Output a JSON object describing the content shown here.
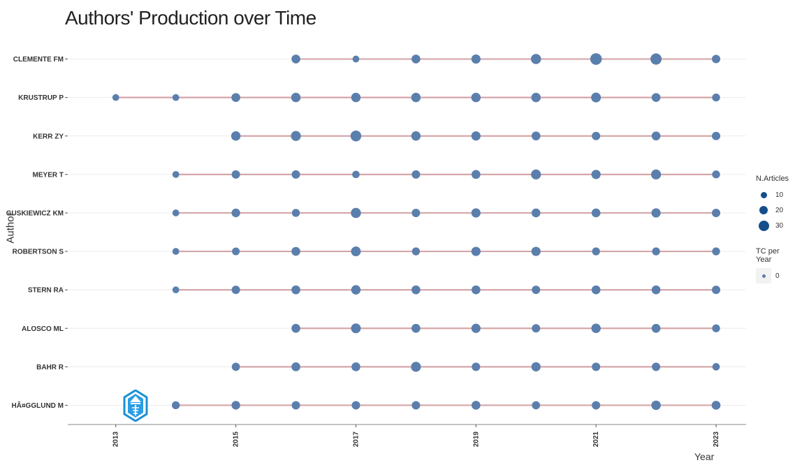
{
  "chart_data": {
    "type": "scatter",
    "title": "Authors' Production over Time",
    "xlabel": "Year",
    "ylabel": "Author",
    "x_ticks": [
      2013,
      2015,
      2017,
      2019,
      2021,
      2023
    ],
    "xlim": [
      2012.2,
      2023.5
    ],
    "authors": [
      {
        "name": "CLEMENTE FM",
        "points": [
          [
            2016,
            14
          ],
          [
            2017,
            6
          ],
          [
            2018,
            14
          ],
          [
            2019,
            16
          ],
          [
            2020,
            21
          ],
          [
            2021,
            31
          ],
          [
            2022,
            28
          ],
          [
            2023,
            12
          ]
        ]
      },
      {
        "name": "KRUSTRUP P",
        "points": [
          [
            2013,
            6
          ],
          [
            2014,
            6
          ],
          [
            2015,
            14
          ],
          [
            2016,
            17
          ],
          [
            2017,
            17
          ],
          [
            2018,
            17
          ],
          [
            2019,
            17
          ],
          [
            2020,
            17
          ],
          [
            2021,
            19
          ],
          [
            2022,
            14
          ],
          [
            2023,
            10
          ]
        ]
      },
      {
        "name": "KERR ZY",
        "points": [
          [
            2015,
            17
          ],
          [
            2016,
            20
          ],
          [
            2017,
            25
          ],
          [
            2018,
            17
          ],
          [
            2019,
            16
          ],
          [
            2020,
            14
          ],
          [
            2021,
            12
          ],
          [
            2022,
            14
          ],
          [
            2023,
            12
          ]
        ]
      },
      {
        "name": "MEYER T",
        "points": [
          [
            2014,
            6
          ],
          [
            2015,
            12
          ],
          [
            2016,
            12
          ],
          [
            2017,
            8
          ],
          [
            2018,
            12
          ],
          [
            2019,
            14
          ],
          [
            2020,
            20
          ],
          [
            2021,
            16
          ],
          [
            2022,
            20
          ],
          [
            2023,
            10
          ]
        ]
      },
      {
        "name": "GUSKIEWICZ KM",
        "points": [
          [
            2014,
            6
          ],
          [
            2015,
            13
          ],
          [
            2016,
            10
          ],
          [
            2017,
            21
          ],
          [
            2018,
            12
          ],
          [
            2019,
            16
          ],
          [
            2020,
            14
          ],
          [
            2021,
            14
          ],
          [
            2022,
            16
          ],
          [
            2023,
            12
          ]
        ]
      },
      {
        "name": "ROBERTSON S",
        "points": [
          [
            2014,
            6
          ],
          [
            2015,
            9
          ],
          [
            2016,
            14
          ],
          [
            2017,
            19
          ],
          [
            2018,
            10
          ],
          [
            2019,
            16
          ],
          [
            2020,
            16
          ],
          [
            2021,
            10
          ],
          [
            2022,
            10
          ],
          [
            2023,
            10
          ]
        ]
      },
      {
        "name": "STERN RA",
        "points": [
          [
            2014,
            6
          ],
          [
            2015,
            12
          ],
          [
            2016,
            14
          ],
          [
            2017,
            17
          ],
          [
            2018,
            14
          ],
          [
            2019,
            14
          ],
          [
            2020,
            12
          ],
          [
            2021,
            14
          ],
          [
            2022,
            14
          ],
          [
            2023,
            12
          ]
        ]
      },
      {
        "name": "ALOSCO ML",
        "points": [
          [
            2016,
            14
          ],
          [
            2017,
            19
          ],
          [
            2018,
            14
          ],
          [
            2019,
            16
          ],
          [
            2020,
            12
          ],
          [
            2021,
            17
          ],
          [
            2022,
            14
          ],
          [
            2023,
            10
          ]
        ]
      },
      {
        "name": "BAHR R",
        "points": [
          [
            2015,
            11
          ],
          [
            2016,
            14
          ],
          [
            2017,
            14
          ],
          [
            2018,
            20
          ],
          [
            2019,
            12
          ],
          [
            2020,
            16
          ],
          [
            2021,
            12
          ],
          [
            2022,
            12
          ],
          [
            2023,
            8
          ]
        ]
      },
      {
        "name": "HÃ¤GGLUND M",
        "points": [
          [
            2014,
            10
          ],
          [
            2015,
            13
          ],
          [
            2016,
            12
          ],
          [
            2017,
            12
          ],
          [
            2018,
            12
          ],
          [
            2019,
            14
          ],
          [
            2020,
            11
          ],
          [
            2021,
            12
          ],
          [
            2022,
            17
          ],
          [
            2023,
            14
          ]
        ]
      }
    ],
    "legend": {
      "size_title": "N.Articles",
      "size_values": [
        "10",
        "20",
        "30"
      ],
      "color_title": "TC per Year",
      "color_values": [
        "0"
      ],
      "placement": "right"
    },
    "colors": {
      "point": "#5b7fad",
      "line": "#d4a6a8",
      "legend_point": "#164e8c",
      "grid": "#ececec"
    },
    "grid": true
  }
}
